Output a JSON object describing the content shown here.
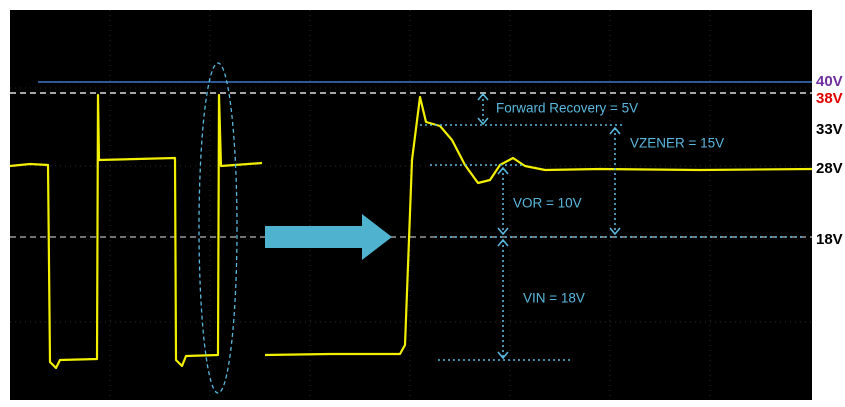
{
  "levels": [
    "40V",
    "38V",
    "33V",
    "28V",
    "18V"
  ],
  "annotations": {
    "forward_recovery": "Forward Recovery = 5V",
    "vzener": "VZENER = 15V",
    "vor": "VOR = 10V",
    "vin": "VIN = 18V"
  }
}
